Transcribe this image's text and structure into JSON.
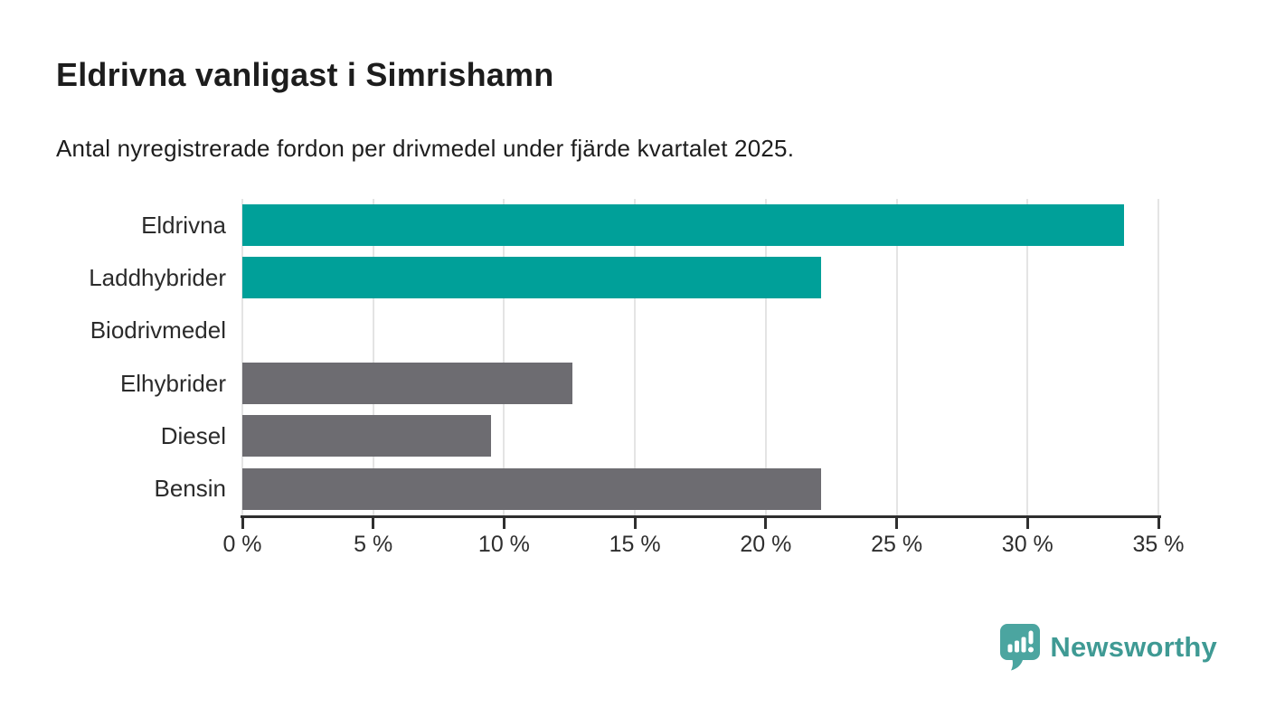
{
  "header": {
    "title": "Eldrivna vanligast i Simrishamn",
    "subtitle": "Antal nyregistrerade fordon per drivmedel under fjärde kvartalet 2025."
  },
  "chart_data": {
    "type": "bar",
    "orientation": "horizontal",
    "title": "Eldrivna vanligast i Simrishamn",
    "subtitle": "Antal nyregistrerade fordon per drivmedel under fjärde kvartalet 2025.",
    "categories": [
      "Eldrivna",
      "Laddhybrider",
      "Biodrivmedel",
      "Elhybrider",
      "Diesel",
      "Bensin"
    ],
    "values": [
      33.7,
      22.1,
      0,
      12.6,
      9.5,
      22.1
    ],
    "unit": "%",
    "bar_colors": [
      "#00a099",
      "#00a099",
      "#6d6c71",
      "#6d6c71",
      "#6d6c71",
      "#6d6c71"
    ],
    "xlabel": "",
    "ylabel": "",
    "xlim": [
      0,
      35
    ],
    "x_ticks": [
      0,
      5,
      10,
      15,
      20,
      25,
      30,
      35
    ],
    "x_tick_labels": [
      "0 %",
      "5 %",
      "10 %",
      "15 %",
      "20 %",
      "25 %",
      "30 %",
      "35 %"
    ],
    "grid": "vertical-only",
    "legend": "none"
  },
  "footer": {
    "brand": "Newsworthy"
  },
  "colors": {
    "accent_teal": "#00a099",
    "neutral_gray": "#6d6c71",
    "gridline": "#e4e4e4",
    "axis": "#2f2f2f",
    "text": "#1d1d1d",
    "brand_icon": "#4ba5a0",
    "brand_text": "#3f9a94"
  }
}
